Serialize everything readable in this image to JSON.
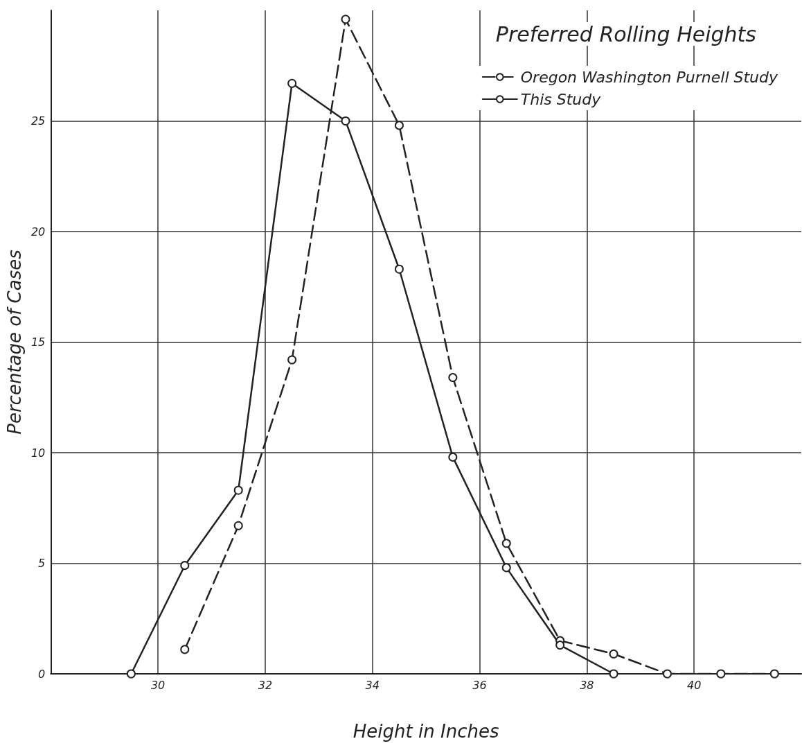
{
  "chart_data": {
    "type": "line",
    "title": "Preferred Rolling Heights",
    "xlabel": "Height in Inches",
    "ylabel": "Percentage of Cases",
    "xlim": [
      28,
      42
    ],
    "xticks": [
      30,
      32,
      34,
      36,
      38,
      40
    ],
    "ylim": [
      0,
      30
    ],
    "yticks": [
      0,
      5,
      10,
      15,
      20,
      25
    ],
    "grid": true,
    "legend": "top right",
    "marker": "circle",
    "series": [
      {
        "name": "Oregon Washington Purnell Study",
        "color": "#222222",
        "line_style": "dashed",
        "x": [
          30.5,
          31.5,
          32.5,
          33.5,
          34.5,
          35.5,
          36.5,
          37.5,
          38.5,
          39.5,
          40.5,
          41.5
        ],
        "values": [
          1.1,
          6.7,
          14.2,
          29.6,
          24.8,
          13.4,
          5.9,
          1.5,
          0.9,
          0,
          0,
          0
        ]
      },
      {
        "name": "This Study",
        "color": "#222222",
        "line_style": "solid",
        "x": [
          29.5,
          30.5,
          31.5,
          32.5,
          33.5,
          34.5,
          35.5,
          36.5,
          37.5,
          38.5
        ],
        "values": [
          0,
          4.9,
          8.3,
          26.7,
          25.0,
          18.3,
          9.8,
          4.8,
          1.3,
          0
        ]
      }
    ]
  }
}
